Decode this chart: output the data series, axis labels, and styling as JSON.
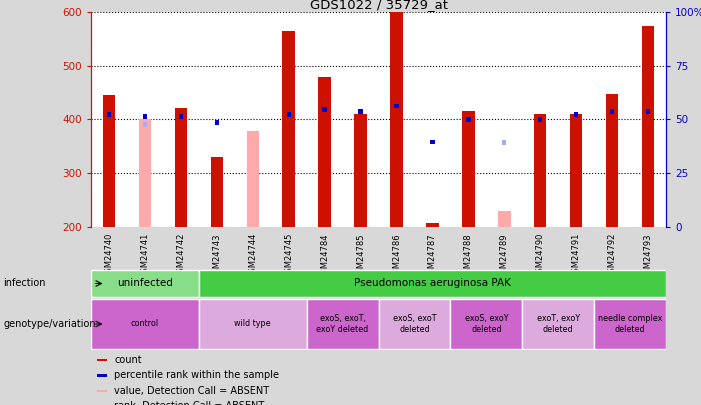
{
  "title": "GDS1022 / 35729_at",
  "samples": [
    "GSM24740",
    "GSM24741",
    "GSM24742",
    "GSM24743",
    "GSM24744",
    "GSM24745",
    "GSM24784",
    "GSM24785",
    "GSM24786",
    "GSM24787",
    "GSM24788",
    "GSM24789",
    "GSM24790",
    "GSM24791",
    "GSM24792",
    "GSM24793"
  ],
  "count_values": [
    445,
    null,
    422,
    330,
    null,
    565,
    480,
    410,
    600,
    207,
    415,
    null,
    410,
    410,
    448,
    575
  ],
  "count_absent": [
    null,
    400,
    null,
    null,
    378,
    null,
    null,
    null,
    null,
    null,
    null,
    230,
    null,
    null,
    null,
    null
  ],
  "pct_values": [
    410,
    405,
    405,
    395,
    null,
    410,
    418,
    415,
    425,
    358,
    400,
    null,
    400,
    410,
    415,
    415
  ],
  "pct_absent": [
    null,
    390,
    null,
    null,
    null,
    null,
    null,
    null,
    null,
    null,
    null,
    357,
    null,
    null,
    null,
    null
  ],
  "ylim_left": [
    200,
    600
  ],
  "ylim_right": [
    0,
    100
  ],
  "left_ticks": [
    200,
    300,
    400,
    500,
    600
  ],
  "right_ticks": [
    0,
    25,
    50,
    75,
    100
  ],
  "bar_color": "#cc1100",
  "absent_bar_color": "#ffaaaa",
  "pct_color": "#0000cc",
  "pct_absent_color": "#aaaaee",
  "infection_items": [
    {
      "label": "uninfected",
      "start": 0,
      "end": 3,
      "color": "#88dd88"
    },
    {
      "label": "Pseudomonas aeruginosa PAK",
      "start": 3,
      "end": 16,
      "color": "#44cc44"
    }
  ],
  "genotype_items": [
    {
      "label": "control",
      "start": 0,
      "end": 3,
      "color": "#cc66cc"
    },
    {
      "label": "wild type",
      "start": 3,
      "end": 6,
      "color": "#ddaadd"
    },
    {
      "label": "exoS, exoT,\nexoY deleted",
      "start": 6,
      "end": 8,
      "color": "#cc66cc"
    },
    {
      "label": "exoS, exoT\ndeleted",
      "start": 8,
      "end": 10,
      "color": "#ddaadd"
    },
    {
      "label": "exoS, exoY\ndeleted",
      "start": 10,
      "end": 12,
      "color": "#cc66cc"
    },
    {
      "label": "exoT, exoY\ndeleted",
      "start": 12,
      "end": 14,
      "color": "#ddaadd"
    },
    {
      "label": "needle complex\ndeleted",
      "start": 14,
      "end": 16,
      "color": "#cc66cc"
    }
  ],
  "legend_items": [
    {
      "label": "count",
      "color": "#cc1100"
    },
    {
      "label": "percentile rank within the sample",
      "color": "#0000cc"
    },
    {
      "label": "value, Detection Call = ABSENT",
      "color": "#ffaaaa"
    },
    {
      "label": "rank, Detection Call = ABSENT",
      "color": "#aaaaee"
    }
  ],
  "bg_color": "#d8d8d8",
  "plot_bg_color": "#ffffff"
}
